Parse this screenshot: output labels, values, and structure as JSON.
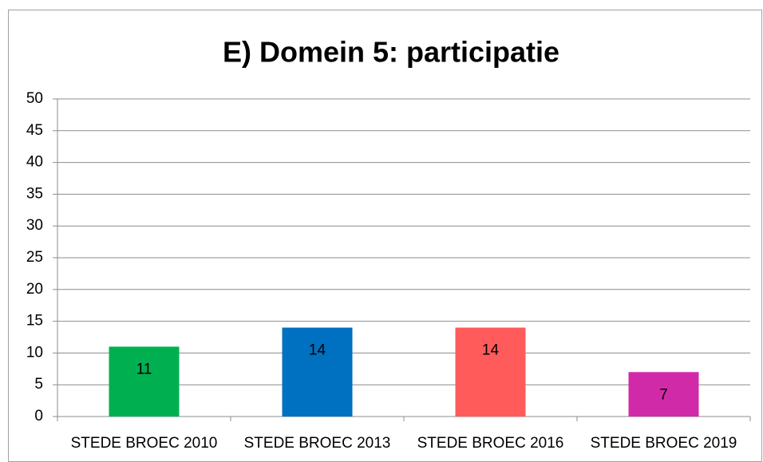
{
  "chart_data": {
    "type": "bar",
    "title": "E) Domein 5: participatie",
    "categories": [
      "STEDE BROEC 2010",
      "STEDE BROEC 2013",
      "STEDE BROEC 2016",
      "STEDE BROEC 2019"
    ],
    "values": [
      11,
      14,
      14,
      7
    ],
    "colors": [
      "#00b050",
      "#0070c0",
      "#ff5b5b",
      "#d12aa8"
    ],
    "ylim": [
      0,
      50
    ],
    "yticks": [
      0,
      5,
      10,
      15,
      20,
      25,
      30,
      35,
      40,
      45,
      50
    ],
    "grid": true
  }
}
